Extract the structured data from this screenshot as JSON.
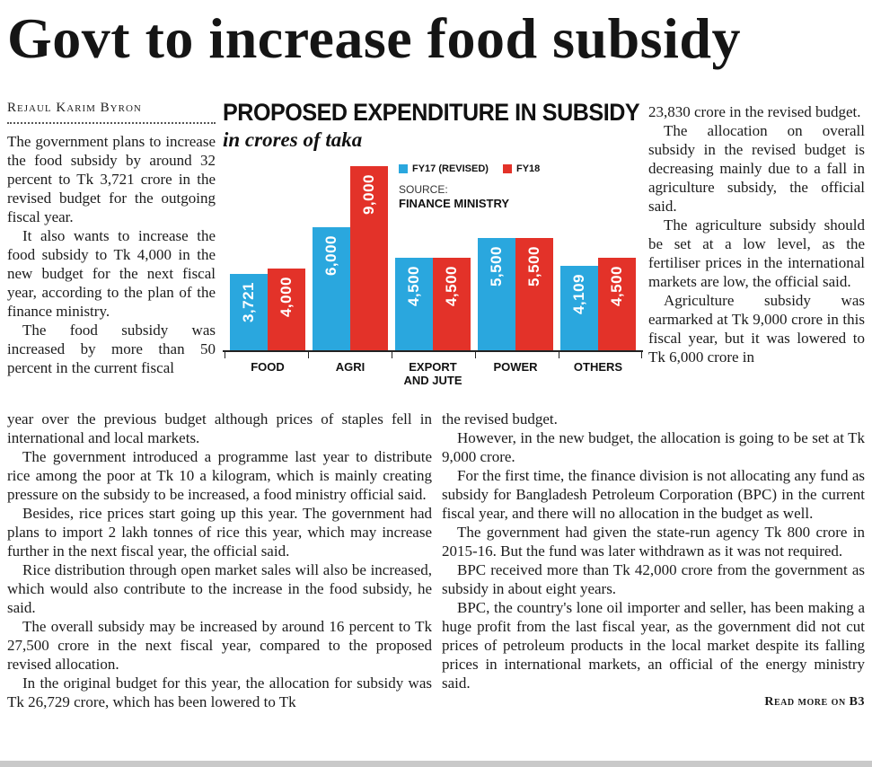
{
  "headline": "Govt to increase food subsidy",
  "byline": "Rejaul Karim Byron",
  "article": {
    "col1": [
      "The government plans to increase the food subsidy by around 32 percent to Tk 3,721 crore in the revised budget for the outgoing fiscal year.",
      "It also wants to increase the food subsidy to Tk 4,000 in the new budget for the next fiscal year, according to the plan of the finance ministry.",
      "The food subsidy was increased by more than 50 percent in the current fiscal"
    ],
    "col3": [
      "23,830 crore in the revised budget.",
      "The allocation on overall subsidy in the revised budget is decreasing mainly due to a fall in agriculture subsidy, the official said.",
      "The agriculture subsidy should be set at a low level, as the fertiliser prices in the international markets are low, the official said.",
      "Agriculture subsidy was earmarked at Tk 9,000 crore in this fiscal year, but it was lowered to Tk 6,000 crore in"
    ],
    "bottom_left": [
      "year over the previous budget although prices of staples fell in international and local markets.",
      "The government introduced a programme last year to distribute rice among the poor at Tk 10 a kilogram, which is mainly creating pressure on the subsidy to be increased, a food ministry official said.",
      "Besides, rice prices start going up this year. The government had plans to import 2 lakh tonnes of rice this year, which may increase further in the next fiscal year, the official said.",
      "Rice distribution through open market sales will also be increased, which would also contribute to the increase in the food subsidy, he said.",
      "The overall subsidy may be increased by around 16 percent to Tk 27,500 crore in the next fiscal year, compared to the proposed revised allocation.",
      "In the original budget for this year, the allocation for subsidy was Tk 26,729 crore, which has been lowered to Tk"
    ],
    "bottom_right": [
      "the revised budget.",
      "However, in the new budget, the allocation is going to be set at Tk 9,000 crore.",
      "For the first time, the finance division is not allocating any fund as subsidy for Bangladesh Petroleum Corporation (BPC) in the current fiscal year, and there will no allocation in the budget as well.",
      "The government had given the state-run agency Tk 800 crore in 2015-16. But the fund was later withdrawn as it was not required.",
      "BPC received more than Tk 42,000 crore from the government as subsidy in about eight years.",
      "BPC, the country's lone oil importer and seller, has been making a huge profit from the last fiscal year, as the government did not cut prices of petroleum products in the local market despite its falling prices in international markets, an official of the energy ministry said."
    ],
    "read_more": "Read more on B3"
  },
  "chart": {
    "title": "PROPOSED EXPENDITURE IN SUBSIDY",
    "subtitle": "in crores of taka",
    "source_label": "SOURCE:",
    "source_value": "FINANCE MINISTRY",
    "legend": [
      {
        "label": "FY17 (REVISED)",
        "color": "#2aa7de"
      },
      {
        "label": "FY18",
        "color": "#e33229"
      }
    ]
  },
  "chart_data": {
    "type": "bar",
    "title": "PROPOSED EXPENDITURE IN SUBSIDY",
    "subtitle": "in crores of taka",
    "unit": "crores of taka",
    "categories": [
      "FOOD",
      "AGRI",
      "EXPORT AND JUTE",
      "POWER",
      "OTHERS"
    ],
    "series": [
      {
        "name": "FY17 (REVISED)",
        "color": "#2aa7de",
        "values": [
          3721,
          6000,
          4500,
          5500,
          4109
        ]
      },
      {
        "name": "FY18",
        "color": "#e33229",
        "values": [
          4000,
          9000,
          4500,
          5500,
          4500
        ]
      }
    ],
    "value_labels": [
      [
        "3,721",
        "6,000",
        "4,500",
        "5,500",
        "4,109"
      ],
      [
        "4,000",
        "9,000",
        "4,500",
        "5,500",
        "4,500"
      ]
    ],
    "ylim": [
      0,
      9000
    ],
    "grid": false,
    "legend_position": "top-right",
    "source": "FINANCE MINISTRY"
  }
}
